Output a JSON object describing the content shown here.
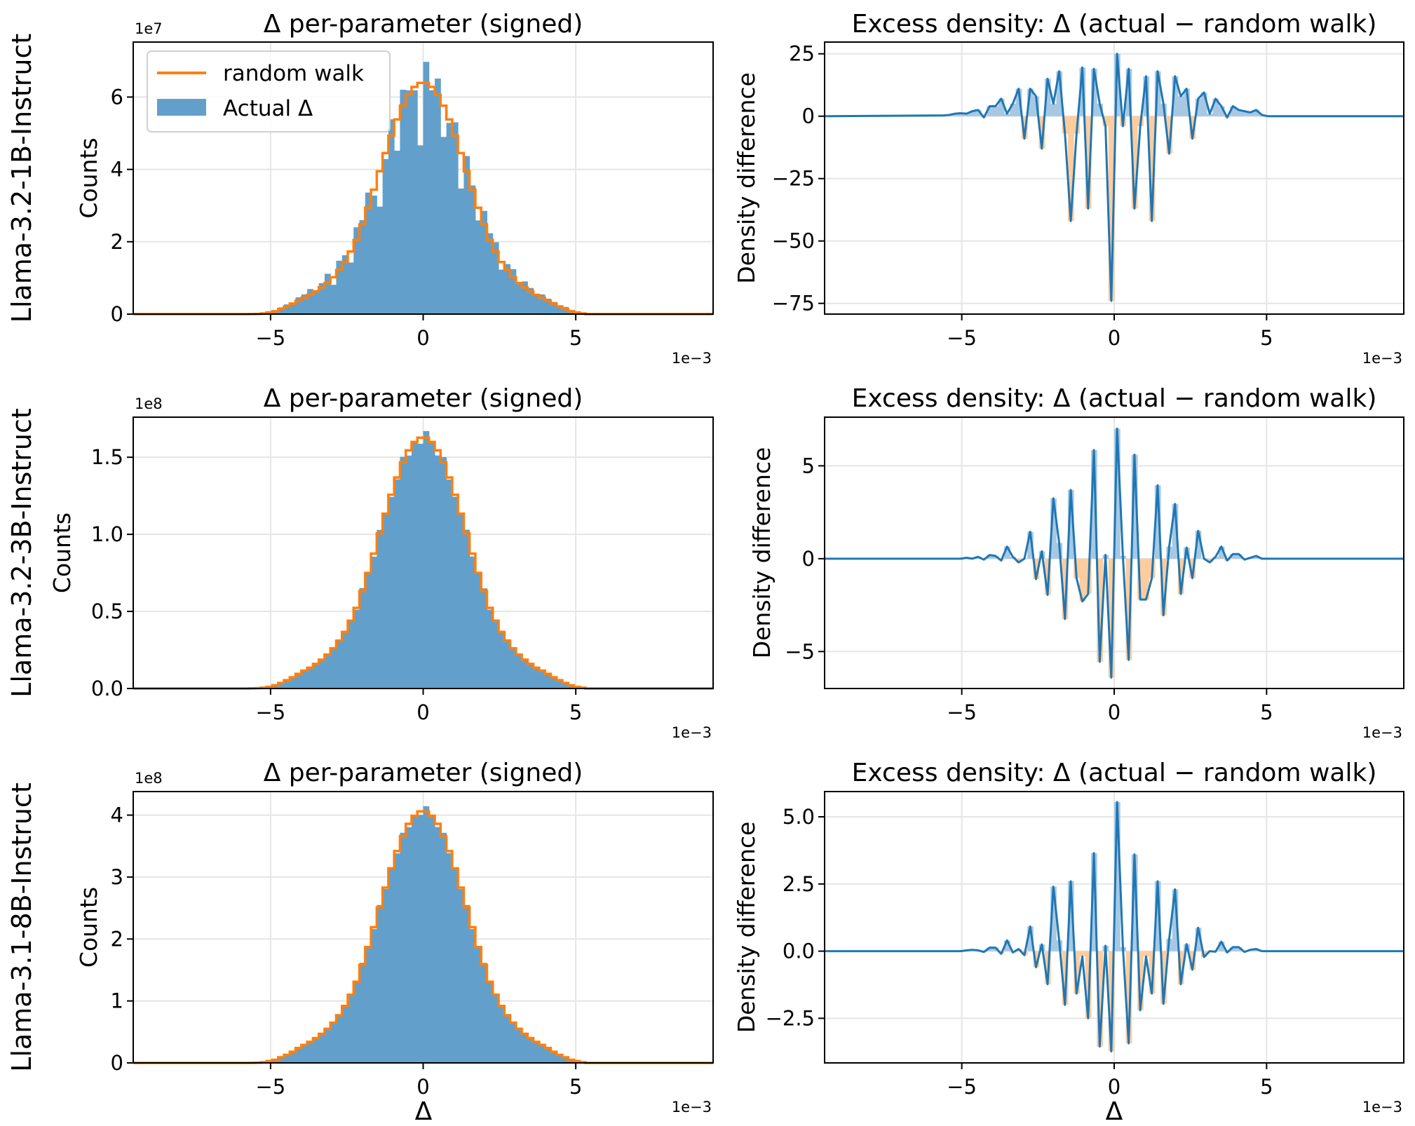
{
  "figure": {
    "x_label": "Δ",
    "x_offset_label": "1e−3"
  },
  "legend": {
    "placement": "upper-left",
    "items": [
      {
        "label": "random walk",
        "color": "#ff7f0e",
        "kind": "line"
      },
      {
        "label": "Actual Δ",
        "color": "#5f9ecd",
        "kind": "patch"
      }
    ]
  },
  "colors": {
    "hist_bar": "#62a0cb",
    "random_walk": "#ff7f0e",
    "excess_line": "#1f77b4",
    "excess_pos": "#a7c8e3",
    "excess_neg": "#ffcc9e",
    "grid": "#e5e5e5"
  },
  "chart_data": {
    "type": "bar",
    "bins": {
      "first_center": -5.605,
      "width": 0.19,
      "count": 58
    },
    "xlim": [
      -9.5,
      9.5
    ],
    "x_ticks": [
      -5,
      0,
      5
    ],
    "x_tick_labels": [
      "−5",
      "0",
      "5"
    ],
    "rows": [
      {
        "row_label": "Llama-3.2-1B-Instruct",
        "hist": {
          "title": "Δ per-parameter (signed)",
          "ylabel": "Counts",
          "y_offset_label": "1e7",
          "ylim": [
            0,
            7.52
          ],
          "y_ticks": [
            0,
            2,
            4,
            6
          ],
          "y_tick_labels": [
            "0",
            "2",
            "4",
            "6"
          ],
          "count_per_density_unit": 0.0233,
          "random_walk": [
            0.003,
            0.006,
            0.02,
            0.045,
            0.08,
            0.14,
            0.21,
            0.29,
            0.37,
            0.45,
            0.53,
            0.63,
            0.74,
            0.86,
            1.02,
            1.22,
            1.44,
            1.73,
            2.05,
            2.48,
            2.94,
            3.44,
            3.95,
            4.45,
            4.93,
            5.38,
            5.76,
            6.07,
            6.28,
            6.39,
            6.39,
            6.28,
            6.07,
            5.76,
            5.38,
            4.93,
            4.45,
            3.95,
            3.44,
            2.94,
            2.48,
            2.05,
            1.73,
            1.44,
            1.22,
            1.02,
            0.86,
            0.74,
            0.63,
            0.53,
            0.45,
            0.37,
            0.29,
            0.21,
            0.14,
            0.08,
            0.045,
            0.02
          ]
        },
        "excess": {
          "title": "Excess density: Δ (actual − random walk)",
          "ylabel": "Density difference",
          "ylim": [
            -79.3,
            29.7
          ],
          "y_ticks": [
            25,
            0,
            -25,
            -50,
            -75
          ],
          "y_tick_labels": [
            "25",
            "0",
            "−25",
            "−50",
            "−75"
          ],
          "values": [
            0.3,
            0.5,
            1,
            1.2,
            1,
            2,
            2.5,
            -0.5,
            4,
            4,
            7,
            1,
            5,
            11,
            -9,
            11,
            8,
            -13,
            15,
            5,
            18,
            -7,
            -42,
            -7,
            19.5,
            -37,
            19,
            5,
            -4,
            -74,
            25,
            -4,
            19,
            -37,
            -4,
            16,
            -42,
            18,
            5,
            -15,
            16,
            8,
            11,
            -9,
            7,
            9.5,
            1,
            7,
            4,
            -0.5,
            4,
            2.5,
            2,
            1.5,
            2.5,
            0.5,
            0,
            0
          ]
        }
      },
      {
        "row_label": "Llama-3.2-3B-Instruct",
        "hist": {
          "title": "Δ per-parameter (signed)",
          "ylabel": "Counts",
          "y_offset_label": "1e8",
          "ylim": [
            0,
            1.76
          ],
          "y_ticks": [
            0,
            0.5,
            1.0,
            1.5
          ],
          "y_tick_labels": [
            "0.0",
            "0.5",
            "1.0",
            "1.5"
          ],
          "count_per_density_unit": 0.00613,
          "random_walk": [
            0.001,
            0.002,
            0.005,
            0.011,
            0.021,
            0.036,
            0.054,
            0.073,
            0.095,
            0.116,
            0.135,
            0.16,
            0.187,
            0.22,
            0.261,
            0.31,
            0.367,
            0.44,
            0.523,
            0.632,
            0.75,
            0.875,
            1.006,
            1.134,
            1.257,
            1.369,
            1.467,
            1.545,
            1.599,
            1.627,
            1.627,
            1.599,
            1.545,
            1.467,
            1.369,
            1.257,
            1.134,
            1.006,
            0.875,
            0.75,
            0.632,
            0.523,
            0.44,
            0.367,
            0.31,
            0.261,
            0.22,
            0.187,
            0.16,
            0.135,
            0.116,
            0.095,
            0.073,
            0.054,
            0.036,
            0.021,
            0.011,
            0.005
          ]
        },
        "excess": {
          "title": "Excess density: Δ (actual − random walk)",
          "ylabel": "Density difference",
          "ylim": [
            -6.99,
            7.62
          ],
          "y_ticks": [
            5,
            0,
            -5
          ],
          "y_tick_labels": [
            "5",
            "0",
            "−5"
          ],
          "values": [
            0,
            0,
            0,
            0,
            0.05,
            0,
            0.1,
            -0.05,
            0.2,
            0.15,
            -0.1,
            0.65,
            0.1,
            -0.2,
            0,
            1.45,
            -1.1,
            0.4,
            -1.95,
            3.25,
            0.85,
            -3.25,
            3.7,
            -1.05,
            -2.3,
            -1.9,
            5.85,
            -5.55,
            0.2,
            -6.4,
            7.0,
            0.15,
            -5.45,
            5.6,
            -2.2,
            -2.2,
            -1.05,
            3.95,
            -3.05,
            0.65,
            2.95,
            -1.9,
            0.6,
            -1.05,
            1.5,
            0,
            -0.2,
            0.1,
            0.65,
            -0.1,
            0.25,
            0.25,
            -0.05,
            0.05,
            0.15,
            0,
            0,
            0
          ]
        }
      },
      {
        "row_label": "Llama-3.1-8B-Instruct",
        "hist": {
          "title": "Δ per-parameter (signed)",
          "ylabel": "Counts",
          "y_offset_label": "1e8",
          "ylim": [
            0,
            4.38
          ],
          "y_ticks": [
            0,
            1,
            2,
            3,
            4
          ],
          "y_tick_labels": [
            "0",
            "1",
            "2",
            "3",
            "4"
          ],
          "count_per_density_unit": 0.0151,
          "random_walk": [
            0.002,
            0.004,
            0.012,
            0.03,
            0.05,
            0.09,
            0.13,
            0.18,
            0.24,
            0.29,
            0.34,
            0.4,
            0.47,
            0.55,
            0.65,
            0.77,
            0.92,
            1.1,
            1.31,
            1.58,
            1.87,
            2.19,
            2.51,
            2.83,
            3.14,
            3.42,
            3.66,
            3.86,
            3.99,
            4.06,
            4.06,
            3.99,
            3.86,
            3.66,
            3.42,
            3.14,
            2.83,
            2.51,
            2.19,
            1.87,
            1.58,
            1.31,
            1.1,
            0.92,
            0.77,
            0.65,
            0.55,
            0.47,
            0.4,
            0.34,
            0.29,
            0.24,
            0.18,
            0.13,
            0.09,
            0.05,
            0.03,
            0.012
          ]
        },
        "excess": {
          "title": "Excess density: Δ (actual − random walk)",
          "ylabel": "Density difference",
          "ylim": [
            -4.16,
            5.94
          ],
          "y_ticks": [
            5.0,
            2.5,
            0.0,
            -2.5
          ],
          "y_tick_labels": [
            "5.0",
            "2.5",
            "0.0",
            "−2.5"
          ],
          "values": [
            0,
            0,
            0,
            0,
            0.03,
            0.05,
            0.03,
            -0.03,
            0.13,
            0.13,
            -0.1,
            0.4,
            -0.05,
            0.08,
            -0.15,
            0.92,
            -0.6,
            0.25,
            -1.23,
            2.4,
            0.4,
            -2.0,
            2.6,
            -1.58,
            -0.2,
            -2.5,
            3.65,
            -3.55,
            0.2,
            -3.73,
            5.55,
            0.15,
            -3.43,
            3.6,
            -2.2,
            -0.2,
            -1.58,
            2.6,
            -1.96,
            0.46,
            2.3,
            -1.23,
            0.26,
            -0.69,
            0.87,
            -0.22,
            0,
            -0.02,
            0.35,
            -0.05,
            0.15,
            0.15,
            -0.03,
            0.05,
            0.08,
            0,
            0,
            0
          ]
        }
      }
    ]
  }
}
